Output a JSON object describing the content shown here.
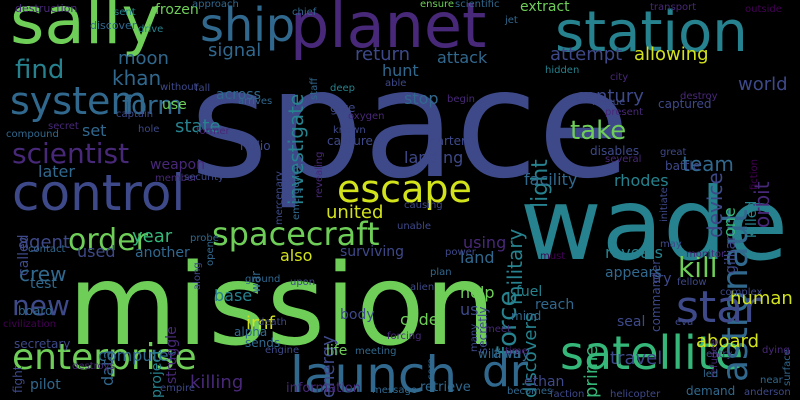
{
  "palette": {
    "background": "#000000",
    "purple": "#482878",
    "indigo": "#3e4989",
    "blue": "#31688e",
    "teal": "#26828e",
    "green": "#35b779",
    "lime": "#6ece58",
    "yellow": "#d2e21b",
    "dark": "#440154"
  },
  "words": [
    {
      "text": "space",
      "color": "#3e4989"
    },
    {
      "text": "mission",
      "color": "#6ece58"
    },
    {
      "text": "wade",
      "color": "#26828e"
    },
    {
      "text": "sally",
      "color": "#6ece58"
    },
    {
      "text": "planet",
      "color": "#482878"
    },
    {
      "text": "station",
      "color": "#26828e"
    },
    {
      "text": "ship",
      "color": "#31688e"
    },
    {
      "text": "control",
      "color": "#3e4989"
    },
    {
      "text": "system",
      "color": "#31688e"
    },
    {
      "text": "escape",
      "color": "#d2e21b"
    },
    {
      "text": "launch",
      "color": "#31688e"
    },
    {
      "text": "satellite",
      "color": "#35b779"
    },
    {
      "text": "enterprise",
      "color": "#6ece58"
    },
    {
      "text": "spacecraft",
      "color": "#6ece58"
    },
    {
      "text": "astronaut",
      "color": "#31688e"
    },
    {
      "text": "star",
      "color": "#3e4989"
    },
    {
      "text": "dr",
      "color": "#31688e"
    },
    {
      "text": "order",
      "color": "#6ece58"
    },
    {
      "text": "scientist",
      "color": "#482878"
    },
    {
      "text": "kill",
      "color": "#6ece58"
    },
    {
      "text": "find",
      "color": "#26828e"
    },
    {
      "text": "take",
      "color": "#6ece58"
    },
    {
      "text": "force",
      "color": "#26828e"
    },
    {
      "text": "new",
      "color": "#3e4989"
    },
    {
      "text": "moon",
      "color": "#31688e"
    },
    {
      "text": "khan",
      "color": "#31688e"
    },
    {
      "text": "form",
      "color": "#31688e"
    },
    {
      "text": "return",
      "color": "#3e4989"
    },
    {
      "text": "signal",
      "color": "#31688e"
    },
    {
      "text": "investigate",
      "color": "#26828e"
    },
    {
      "text": "light",
      "color": "#26828e"
    },
    {
      "text": "military",
      "color": "#26828e"
    },
    {
      "text": "orbit",
      "color": "#482878"
    },
    {
      "text": "device",
      "color": "#3e4989"
    },
    {
      "text": "team",
      "color": "#31688e"
    },
    {
      "text": "world",
      "color": "#3e4989"
    },
    {
      "text": "century",
      "color": "#3e4989"
    },
    {
      "text": "allowing",
      "color": "#d2e21b"
    },
    {
      "text": "attempt",
      "color": "#3e4989"
    },
    {
      "text": "attack",
      "color": "#31688e"
    },
    {
      "text": "hunt",
      "color": "#31688e"
    },
    {
      "text": "stop",
      "color": "#31688e"
    },
    {
      "text": "united",
      "color": "#d2e21b"
    },
    {
      "text": "crew",
      "color": "#31688e"
    },
    {
      "text": "agent",
      "color": "#3e4989"
    },
    {
      "text": "year",
      "color": "#35b779"
    },
    {
      "text": "later",
      "color": "#31688e"
    },
    {
      "text": "state",
      "color": "#26828e"
    },
    {
      "text": "use",
      "color": "#6ece58"
    },
    {
      "text": "set",
      "color": "#31688e"
    },
    {
      "text": "facility",
      "color": "#31688e"
    },
    {
      "text": "rhodes",
      "color": "#26828e"
    },
    {
      "text": "human",
      "color": "#d2e21b"
    },
    {
      "text": "aboard",
      "color": "#d2e21b"
    },
    {
      "text": "help",
      "color": "#6ece58"
    },
    {
      "text": "energy",
      "color": "#3e4989"
    },
    {
      "text": "imf",
      "color": "#d2e21b"
    },
    {
      "text": "base",
      "color": "#26828e"
    },
    {
      "text": "also",
      "color": "#d2e21b"
    },
    {
      "text": "land",
      "color": "#31688e"
    },
    {
      "text": "reveals",
      "color": "#26828e"
    },
    {
      "text": "prime",
      "color": "#35b779"
    },
    {
      "text": "discovers",
      "color": "#26828e"
    },
    {
      "text": "travel",
      "color": "#3e4989"
    },
    {
      "text": "code",
      "color": "#6ece58"
    },
    {
      "text": "using",
      "color": "#482878"
    },
    {
      "text": "us",
      "color": "#3e4989"
    },
    {
      "text": "computer",
      "color": "#31688e"
    },
    {
      "text": "killing",
      "color": "#482878"
    },
    {
      "text": "pilot",
      "color": "#31688e"
    },
    {
      "text": "test",
      "color": "#31688e"
    },
    {
      "text": "board",
      "color": "#31688e"
    },
    {
      "text": "used",
      "color": "#3e4989"
    },
    {
      "text": "called",
      "color": "#3e4989"
    },
    {
      "text": "project",
      "color": "#26828e"
    },
    {
      "text": "data",
      "color": "#31688e"
    },
    {
      "text": "struggle",
      "color": "#482878"
    },
    {
      "text": "information",
      "color": "#482878"
    },
    {
      "text": "retrieve",
      "color": "#31688e"
    },
    {
      "text": "destruction",
      "color": "#482878"
    },
    {
      "text": "frozen",
      "color": "#6ece58"
    },
    {
      "text": "extract",
      "color": "#6ece58"
    },
    {
      "text": "sent",
      "color": "#26828e"
    },
    {
      "text": "chief",
      "color": "#31688e"
    },
    {
      "text": "ensure",
      "color": "#6ece58"
    },
    {
      "text": "scientific",
      "color": "#31688e"
    },
    {
      "text": "transport",
      "color": "#482878"
    },
    {
      "text": "outside",
      "color": "#440154"
    },
    {
      "text": "discover",
      "color": "#31688e"
    },
    {
      "text": "drive",
      "color": "#26828e"
    },
    {
      "text": "approach",
      "color": "#31688e"
    },
    {
      "text": "jet",
      "color": "#31688e"
    },
    {
      "text": "deep",
      "color": "#26828e"
    },
    {
      "text": "staff",
      "color": "#31688e"
    },
    {
      "text": "able",
      "color": "#3e4989"
    },
    {
      "text": "hidden",
      "color": "#26828e"
    },
    {
      "text": "city",
      "color": "#482878"
    },
    {
      "text": "destroy",
      "color": "#482878"
    },
    {
      "text": "without",
      "color": "#3e4989"
    },
    {
      "text": "fall",
      "color": "#3e4989"
    },
    {
      "text": "across",
      "color": "#31688e"
    },
    {
      "text": "arrives",
      "color": "#31688e"
    },
    {
      "text": "give",
      "color": "#3e4989"
    },
    {
      "text": "oxygen",
      "color": "#482878"
    },
    {
      "text": "captain",
      "color": "#3e4989"
    },
    {
      "text": "hole",
      "color": "#3e4989"
    },
    {
      "text": "former",
      "color": "#482878"
    },
    {
      "text": "secret",
      "color": "#482878"
    },
    {
      "text": "compound",
      "color": "#31688e"
    },
    {
      "text": "radio",
      "color": "#3e4989"
    },
    {
      "text": "revealing",
      "color": "#482878"
    },
    {
      "text": "capture",
      "color": "#3e4989"
    },
    {
      "text": "known",
      "color": "#3e4989"
    },
    {
      "text": "carter",
      "color": "#3e4989"
    },
    {
      "text": "begin",
      "color": "#482878"
    },
    {
      "text": "rescue",
      "color": "#3e4989"
    },
    {
      "text": "present",
      "color": "#482878"
    },
    {
      "text": "captured",
      "color": "#3e4989"
    },
    {
      "text": "several",
      "color": "#482878"
    },
    {
      "text": "disables",
      "color": "#3e4989"
    },
    {
      "text": "great",
      "color": "#3e4989"
    },
    {
      "text": "battle",
      "color": "#3e4989"
    },
    {
      "text": "weapon",
      "color": "#482878"
    },
    {
      "text": "member",
      "color": "#482878"
    },
    {
      "text": "security",
      "color": "#3e4989"
    },
    {
      "text": "landing",
      "color": "#3e4989"
    },
    {
      "text": "causing",
      "color": "#3e4989"
    },
    {
      "text": "mercenary",
      "color": "#3e4989"
    },
    {
      "text": "initiate",
      "color": "#3e4989"
    },
    {
      "text": "gillian",
      "color": "#3e4989"
    },
    {
      "text": "killed",
      "color": "#26828e"
    },
    {
      "text": "emergency",
      "color": "#31688e"
    },
    {
      "text": "one",
      "color": "#35b779"
    },
    {
      "text": "fiction",
      "color": "#440154"
    },
    {
      "text": "commander",
      "color": "#3e4989"
    },
    {
      "text": "contact",
      "color": "#31688e"
    },
    {
      "text": "another",
      "color": "#31688e"
    },
    {
      "text": "probe",
      "color": "#31688e"
    },
    {
      "text": "open",
      "color": "#31688e"
    },
    {
      "text": "war",
      "color": "#31688e"
    },
    {
      "text": "unable",
      "color": "#3e4989"
    },
    {
      "text": "surviving",
      "color": "#3e4989"
    },
    {
      "text": "appears",
      "color": "#31688e"
    },
    {
      "text": "may",
      "color": "#3e4989"
    },
    {
      "text": "monitor",
      "color": "#482878"
    },
    {
      "text": "try",
      "color": "#3e4989"
    },
    {
      "text": "fellow",
      "color": "#3e4989"
    },
    {
      "text": "complex",
      "color": "#3e4989"
    },
    {
      "text": "along",
      "color": "#3e4989"
    },
    {
      "text": "ground",
      "color": "#31688e"
    },
    {
      "text": "plan",
      "color": "#31688e"
    },
    {
      "text": "power",
      "color": "#3e4989"
    },
    {
      "text": "must",
      "color": "#440154"
    },
    {
      "text": "alpha",
      "color": "#31688e"
    },
    {
      "text": "sends",
      "color": "#31688e"
    },
    {
      "text": "upon",
      "color": "#3e4989"
    },
    {
      "text": "alien",
      "color": "#3e4989"
    },
    {
      "text": "secretly",
      "color": "#3e4989"
    },
    {
      "text": "reach",
      "color": "#31688e"
    },
    {
      "text": "fuel",
      "color": "#26828e"
    },
    {
      "text": "seal",
      "color": "#3e4989"
    },
    {
      "text": "eva",
      "color": "#3e4989"
    },
    {
      "text": "refugee",
      "color": "#482878"
    },
    {
      "text": "surface",
      "color": "#31688e"
    },
    {
      "text": "civilization",
      "color": "#440154"
    },
    {
      "text": "fight",
      "color": "#3e4989"
    },
    {
      "text": "secretary",
      "color": "#3e4989"
    },
    {
      "text": "destroys",
      "color": "#482878"
    },
    {
      "text": "empire",
      "color": "#3e4989"
    },
    {
      "text": "engine",
      "color": "#3e4989"
    },
    {
      "text": "death",
      "color": "#3e4989"
    },
    {
      "text": "body",
      "color": "#3e4989"
    },
    {
      "text": "life",
      "color": "#6ece58"
    },
    {
      "text": "meeting",
      "color": "#31688e"
    },
    {
      "text": "message",
      "color": "#31688e"
    },
    {
      "text": "forcing",
      "color": "#482878"
    },
    {
      "text": "core",
      "color": "#31688e"
    },
    {
      "text": "many",
      "color": "#3e4989"
    },
    {
      "text": "meet",
      "color": "#482878"
    },
    {
      "text": "mind",
      "color": "#31688e"
    },
    {
      "text": "william",
      "color": "#31688e"
    },
    {
      "text": "away",
      "color": "#31688e"
    },
    {
      "text": "time",
      "color": "#482878"
    },
    {
      "text": "ethan",
      "color": "#3e4989"
    },
    {
      "text": "becomes",
      "color": "#31688e"
    },
    {
      "text": "faction",
      "color": "#3e4989"
    },
    {
      "text": "helicopter",
      "color": "#3e4989"
    },
    {
      "text": "demand",
      "color": "#31688e"
    },
    {
      "text": "anderson",
      "color": "#3e4989"
    },
    {
      "text": "entry",
      "color": "#3e4989"
    },
    {
      "text": "led",
      "color": "#31688e"
    },
    {
      "text": "near",
      "color": "#31688e"
    },
    {
      "text": "dying",
      "color": "#482878"
    }
  ]
}
